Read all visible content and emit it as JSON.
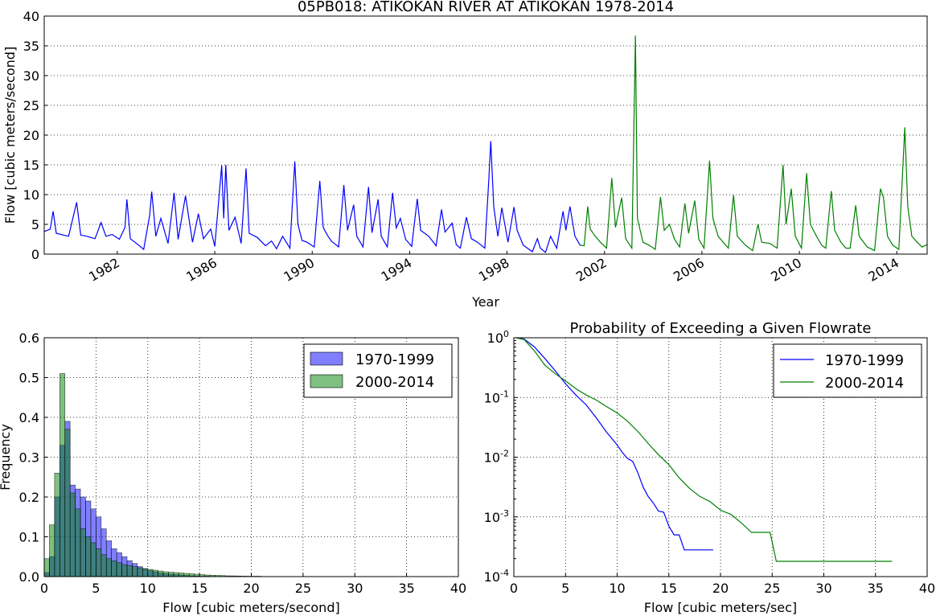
{
  "chart_data": [
    {
      "type": "line",
      "title": "05PB018: ATIKOKAN RIVER AT ATIKOKAN 1978-2014",
      "xlabel": "Year",
      "ylabel": "Flow [cubic meters/second]",
      "xlim": [
        "1979-01-01",
        "2015-04-01"
      ],
      "ylim": [
        0,
        40
      ],
      "x_tick_labels": [
        "1982",
        "1986",
        "1990",
        "1994",
        "1998",
        "2002",
        "2006",
        "2010",
        "2014"
      ],
      "y_tick_labels": [
        "0",
        "5",
        "10",
        "15",
        "20",
        "25",
        "30",
        "35",
        "40"
      ],
      "grid": true,
      "series": [
        {
          "name": "1970-1999",
          "color": "#0000ff",
          "points": [
            [
              "1979-01-01",
              3.8
            ],
            [
              "1979-04-01",
              4.2
            ],
            [
              "1979-05-15",
              7.2
            ],
            [
              "1979-07-01",
              3.5
            ],
            [
              "1979-10-15",
              3.2
            ],
            [
              "1980-01-01",
              3.0
            ],
            [
              "1980-05-01",
              8.7
            ],
            [
              "1980-07-01",
              3.2
            ],
            [
              "1980-10-01",
              3.0
            ],
            [
              "1981-02-01",
              2.6
            ],
            [
              "1981-05-01",
              5.3
            ],
            [
              "1981-07-15",
              3.0
            ],
            [
              "1981-10-15",
              3.3
            ],
            [
              "1982-02-01",
              2.5
            ],
            [
              "1982-04-25",
              4.5
            ],
            [
              "1982-05-25",
              9.2
            ],
            [
              "1982-07-15",
              2.6
            ],
            [
              "1982-10-15",
              1.8
            ],
            [
              "1983-02-01",
              0.8
            ],
            [
              "1983-05-01",
              6.5
            ],
            [
              "1983-06-01",
              10.5
            ],
            [
              "1983-08-01",
              3.0
            ],
            [
              "1983-10-15",
              6.0
            ],
            [
              "1984-02-01",
              1.8
            ],
            [
              "1984-05-01",
              10.3
            ],
            [
              "1984-07-01",
              2.5
            ],
            [
              "1984-10-20",
              9.8
            ],
            [
              "1985-02-01",
              2.0
            ],
            [
              "1985-05-01",
              6.8
            ],
            [
              "1985-07-15",
              2.6
            ],
            [
              "1985-11-01",
              4.2
            ],
            [
              "1986-01-01",
              1.3
            ],
            [
              "1986-04-15",
              14.9
            ],
            [
              "1986-05-15",
              6.0
            ],
            [
              "1986-06-15",
              15.0
            ],
            [
              "1986-08-01",
              4.0
            ],
            [
              "1986-11-01",
              6.2
            ],
            [
              "1987-02-01",
              1.8
            ],
            [
              "1987-04-15",
              14.4
            ],
            [
              "1987-06-01",
              3.5
            ],
            [
              "1987-10-01",
              2.8
            ],
            [
              "1988-02-01",
              1.4
            ],
            [
              "1988-05-01",
              2.2
            ],
            [
              "1988-07-15",
              0.9
            ],
            [
              "1988-10-15",
              3.0
            ],
            [
              "1989-02-01",
              1.0
            ],
            [
              "1989-04-15",
              15.6
            ],
            [
              "1989-06-01",
              5.0
            ],
            [
              "1989-08-01",
              2.3
            ],
            [
              "1989-10-15",
              2.0
            ],
            [
              "1990-02-01",
              1.2
            ],
            [
              "1990-04-25",
              12.3
            ],
            [
              "1990-06-15",
              4.5
            ],
            [
              "1990-08-15",
              3.2
            ],
            [
              "1990-10-15",
              2.2
            ],
            [
              "1991-02-01",
              1.2
            ],
            [
              "1991-04-20",
              11.6
            ],
            [
              "1991-06-15",
              4.0
            ],
            [
              "1991-09-15",
              8.3
            ],
            [
              "1991-11-01",
              3.0
            ],
            [
              "1992-02-01",
              1.2
            ],
            [
              "1992-04-25",
              11.3
            ],
            [
              "1992-06-15",
              3.6
            ],
            [
              "1992-09-15",
              9.2
            ],
            [
              "1992-11-01",
              3.0
            ],
            [
              "1993-02-01",
              1.2
            ],
            [
              "1993-04-20",
              10.3
            ],
            [
              "1993-06-15",
              4.4
            ],
            [
              "1993-08-15",
              6.0
            ],
            [
              "1993-11-01",
              2.5
            ],
            [
              "1994-02-01",
              1.3
            ],
            [
              "1994-04-25",
              9.3
            ],
            [
              "1994-06-15",
              4.0
            ],
            [
              "1994-10-15",
              3.0
            ],
            [
              "1995-02-01",
              1.4
            ],
            [
              "1995-04-25",
              7.5
            ],
            [
              "1995-06-15",
              3.7
            ],
            [
              "1995-10-01",
              5.2
            ],
            [
              "1995-12-01",
              1.6
            ],
            [
              "1996-02-01",
              1.0
            ],
            [
              "1996-05-01",
              6.2
            ],
            [
              "1996-07-15",
              2.6
            ],
            [
              "1996-10-15",
              2.0
            ],
            [
              "1997-02-01",
              1.0
            ],
            [
              "1997-04-01",
              12.3
            ],
            [
              "1997-05-01",
              19.0
            ],
            [
              "1997-06-15",
              8.0
            ],
            [
              "1997-08-15",
              3.0
            ],
            [
              "1997-10-15",
              7.8
            ],
            [
              "1998-01-15",
              2.0
            ],
            [
              "1998-04-15",
              7.9
            ],
            [
              "1998-06-01",
              4.0
            ],
            [
              "1998-09-01",
              1.5
            ],
            [
              "1999-01-15",
              0.4
            ],
            [
              "1999-04-01",
              2.6
            ],
            [
              "1999-05-15",
              1.0
            ],
            [
              "1999-08-01",
              0.3
            ],
            [
              "1999-10-15",
              3.0
            ],
            [
              "2000-01-15",
              1.0
            ],
            [
              "2000-04-20",
              7.2
            ],
            [
              "2000-06-01",
              4.0
            ],
            [
              "2000-08-01",
              8.0
            ],
            [
              "2000-10-15",
              3.0
            ],
            [
              "2000-12-31",
              1.5
            ]
          ]
        },
        {
          "name": "2000-2014",
          "color": "#008000",
          "points": [
            [
              "2000-12-31",
              1.5
            ],
            [
              "2001-03-01",
              1.4
            ],
            [
              "2001-04-25",
              8.0
            ],
            [
              "2001-06-01",
              4.2
            ],
            [
              "2001-08-15",
              3.0
            ],
            [
              "2001-11-01",
              2.0
            ],
            [
              "2002-02-01",
              1.0
            ],
            [
              "2002-04-20",
              12.8
            ],
            [
              "2002-06-15",
              4.5
            ],
            [
              "2002-09-15",
              9.5
            ],
            [
              "2002-11-15",
              2.6
            ],
            [
              "2003-02-15",
              1.0
            ],
            [
              "2003-04-10",
              36.7
            ],
            [
              "2003-05-10",
              6.0
            ],
            [
              "2003-08-01",
              2.0
            ],
            [
              "2003-11-01",
              1.5
            ],
            [
              "2004-02-01",
              0.8
            ],
            [
              "2004-04-20",
              9.6
            ],
            [
              "2004-06-15",
              4.0
            ],
            [
              "2004-09-01",
              5.0
            ],
            [
              "2004-11-15",
              2.5
            ],
            [
              "2005-02-01",
              1.2
            ],
            [
              "2005-04-20",
              8.5
            ],
            [
              "2005-06-15",
              3.5
            ],
            [
              "2005-09-15",
              9.0
            ],
            [
              "2005-11-15",
              2.5
            ],
            [
              "2006-02-01",
              1.0
            ],
            [
              "2006-04-25",
              15.7
            ],
            [
              "2006-06-15",
              6.0
            ],
            [
              "2006-09-01",
              3.0
            ],
            [
              "2006-11-15",
              2.0
            ],
            [
              "2007-02-01",
              1.0
            ],
            [
              "2007-04-20",
              9.9
            ],
            [
              "2007-06-15",
              3.0
            ],
            [
              "2007-10-15",
              1.5
            ],
            [
              "2008-02-01",
              0.6
            ],
            [
              "2008-04-20",
              5.0
            ],
            [
              "2008-06-15",
              2.0
            ],
            [
              "2008-10-15",
              1.8
            ],
            [
              "2009-02-01",
              1.0
            ],
            [
              "2009-05-01",
              15.0
            ],
            [
              "2009-06-15",
              5.0
            ],
            [
              "2009-09-01",
              11.0
            ],
            [
              "2009-11-01",
              3.0
            ],
            [
              "2010-02-01",
              1.0
            ],
            [
              "2010-04-20",
              13.6
            ],
            [
              "2010-06-15",
              5.0
            ],
            [
              "2010-09-15",
              3.0
            ],
            [
              "2010-12-01",
              1.5
            ],
            [
              "2011-02-01",
              1.0
            ],
            [
              "2011-04-25",
              10.6
            ],
            [
              "2011-06-15",
              4.0
            ],
            [
              "2011-09-15",
              2.0
            ],
            [
              "2011-12-01",
              1.0
            ],
            [
              "2012-02-01",
              1.0
            ],
            [
              "2012-04-25",
              8.2
            ],
            [
              "2012-06-15",
              3.0
            ],
            [
              "2012-10-15",
              1.2
            ],
            [
              "2013-02-01",
              0.6
            ],
            [
              "2013-05-01",
              11.0
            ],
            [
              "2013-06-15",
              9.5
            ],
            [
              "2013-08-15",
              3.0
            ],
            [
              "2013-11-01",
              1.5
            ],
            [
              "2014-02-01",
              0.8
            ],
            [
              "2014-05-01",
              21.3
            ],
            [
              "2014-06-15",
              8.0
            ],
            [
              "2014-08-15",
              3.0
            ],
            [
              "2014-11-01",
              2.0
            ],
            [
              "2015-01-15",
              1.2
            ],
            [
              "2015-04-01",
              1.6
            ]
          ]
        }
      ]
    },
    {
      "type": "bar",
      "title": "",
      "xlabel": "Flow [cubic meters/second]",
      "ylabel": "Frequency",
      "xlim": [
        0,
        40
      ],
      "ylim": [
        0,
        0.6
      ],
      "x_tick_labels": [
        "0",
        "5",
        "10",
        "15",
        "20",
        "25",
        "30",
        "35",
        "40"
      ],
      "y_tick_labels": [
        "0.0",
        "0.1",
        "0.2",
        "0.3",
        "0.4",
        "0.5",
        "0.6"
      ],
      "grid": true,
      "legend_position": "top-right",
      "bin_width": 0.5,
      "series": [
        {
          "name": "1970-1999",
          "color": "#0000ff",
          "bin_start": 0,
          "values": [
            0.01,
            0.05,
            0.2,
            0.33,
            0.39,
            0.23,
            0.22,
            0.2,
            0.19,
            0.17,
            0.15,
            0.12,
            0.09,
            0.07,
            0.06,
            0.05,
            0.04,
            0.033,
            0.025,
            0.02,
            0.015,
            0.012,
            0.009,
            0.007,
            0.006,
            0.005,
            0.004,
            0.003,
            0.002,
            0.0015,
            0.001,
            0.001
          ]
        },
        {
          "name": "2000-2014",
          "color": "#008000",
          "bin_start": 0,
          "values": [
            0.045,
            0.13,
            0.26,
            0.51,
            0.37,
            0.21,
            0.17,
            0.12,
            0.1,
            0.085,
            0.07,
            0.055,
            0.045,
            0.04,
            0.035,
            0.03,
            0.028,
            0.025,
            0.022,
            0.02,
            0.018,
            0.016,
            0.014,
            0.012,
            0.011,
            0.01,
            0.009,
            0.008,
            0.007,
            0.006,
            0.005,
            0.004,
            0.0035,
            0.003,
            0.0025,
            0.002,
            0.0018,
            0.0015,
            0.0012,
            0.001,
            0.001,
            0.001
          ]
        }
      ]
    },
    {
      "type": "line",
      "title": "Probability of Exceeding a Given Flowrate",
      "xlabel": "Flow [cubic meters/sec]",
      "ylabel": "",
      "xlim": [
        0,
        40
      ],
      "ylim": [
        0.0001,
        1
      ],
      "yscale": "log",
      "x_tick_labels": [
        "0",
        "5",
        "10",
        "15",
        "20",
        "25",
        "30",
        "35",
        "40"
      ],
      "y_tick_labels": [
        "10^0",
        "10^-1",
        "10^-2",
        "10^-3",
        "10^-4"
      ],
      "grid": true,
      "legend_position": "top-right",
      "series": [
        {
          "name": "1970-1999",
          "color": "#0000ff",
          "x": [
            0.3,
            1,
            2,
            3,
            4,
            5,
            6,
            7,
            8,
            9,
            10,
            10.5,
            11,
            11.5,
            12,
            12.5,
            13,
            13.5,
            14,
            14.5,
            15,
            15.5,
            16,
            16.5,
            19.3
          ],
          "y": [
            1,
            0.95,
            0.7,
            0.45,
            0.28,
            0.17,
            0.11,
            0.075,
            0.045,
            0.026,
            0.016,
            0.012,
            0.0095,
            0.0085,
            0.0055,
            0.0032,
            0.0022,
            0.0017,
            0.00125,
            0.0012,
            0.0007,
            0.0005,
            0.0005,
            0.00028,
            0.00028
          ]
        },
        {
          "name": "2000-2014",
          "color": "#008000",
          "x": [
            0.2,
            1,
            2,
            3,
            4,
            5,
            6,
            7,
            8,
            9,
            10,
            11,
            12,
            13,
            14,
            15,
            16,
            17,
            18,
            19,
            20,
            21,
            22,
            23,
            24,
            24.8,
            25.4,
            30,
            36.6
          ],
          "y": [
            1,
            0.93,
            0.6,
            0.35,
            0.25,
            0.19,
            0.14,
            0.11,
            0.09,
            0.07,
            0.055,
            0.04,
            0.027,
            0.017,
            0.011,
            0.0075,
            0.0045,
            0.003,
            0.0022,
            0.0018,
            0.0013,
            0.0011,
            0.0008,
            0.00055,
            0.00055,
            0.00055,
            0.00018,
            0.00018,
            0.00018
          ]
        }
      ]
    }
  ]
}
